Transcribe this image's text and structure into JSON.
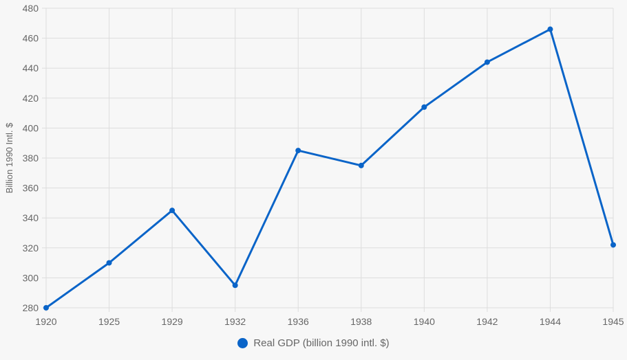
{
  "chart_data": {
    "type": "line",
    "title": "",
    "xlabel": "",
    "ylabel": "Billion 1990 Intl. $",
    "categories": [
      "1920",
      "1925",
      "1929",
      "1932",
      "1936",
      "1938",
      "1940",
      "1942",
      "1944",
      "1945"
    ],
    "ylim": [
      280,
      480
    ],
    "yticks": [
      280,
      300,
      320,
      340,
      360,
      380,
      400,
      420,
      440,
      460,
      480
    ],
    "grid": true,
    "legend_position": "bottom",
    "series": [
      {
        "name": "Real GDP (billion 1990 intl. $)",
        "values": [
          280,
          310,
          345,
          295,
          385,
          375,
          414,
          444,
          466,
          322
        ],
        "color": "#0a64c8"
      }
    ]
  },
  "colors": {
    "grid": "#dddddd",
    "axis_text": "#666666",
    "background": "#f7f7f7"
  }
}
